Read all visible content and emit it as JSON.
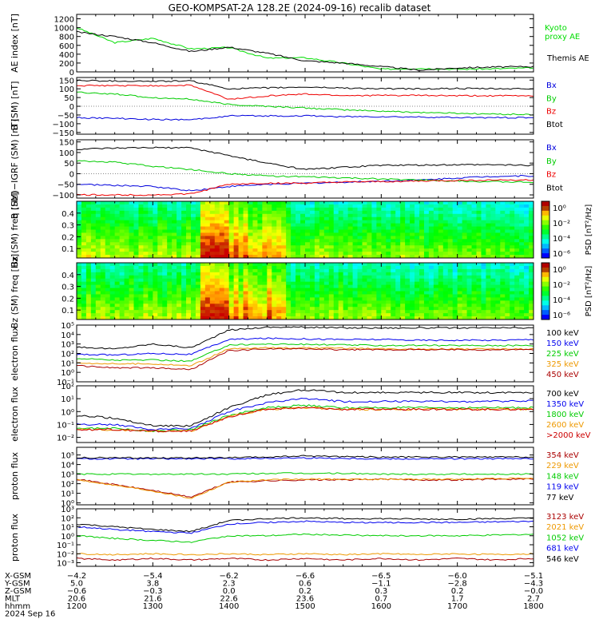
{
  "title": "GEO-KOMPSAT-2A 128.2E (2024-09-16) recalib dataset",
  "chart_data": [
    {
      "type": "line",
      "ylabel": "AE index [nT]",
      "yticks": [
        "0",
        "200",
        "400",
        "600",
        "800",
        "1000",
        "1200"
      ],
      "ylim": [
        0,
        1300
      ],
      "x": [
        "1200",
        "1230",
        "1300",
        "1330",
        "1400",
        "1430",
        "1500",
        "1530",
        "1600",
        "1630",
        "1700",
        "1730",
        "1800"
      ],
      "series": [
        {
          "name": "Kyoto proxy AE",
          "color": "#00dd00",
          "values": [
            1000,
            660,
            760,
            520,
            550,
            310,
            320,
            200,
            60,
            80,
            60,
            70,
            90
          ]
        },
        {
          "name": "Themis AE",
          "color": "#000000",
          "values": [
            900,
            800,
            660,
            460,
            560,
            420,
            250,
            200,
            120,
            40,
            90,
            110,
            120
          ]
        }
      ],
      "legend": [
        {
          "text": "Kyoto",
          "color": "#00dd00"
        },
        {
          "text": "proxy AE",
          "color": "#00dd00"
        },
        {
          "text": "Themis AE",
          "color": "#000000"
        }
      ]
    },
    {
      "type": "line",
      "ylabel": "B (SM) [nT]",
      "yticks": [
        "−150",
        "−100",
        "−50",
        "0",
        "50",
        "100",
        "150"
      ],
      "ylim": [
        -160,
        165
      ],
      "x": [
        "1200",
        "1230",
        "1300",
        "1330",
        "1400",
        "1430",
        "1500",
        "1530",
        "1600",
        "1630",
        "1700",
        "1730",
        "1800"
      ],
      "series": [
        {
          "name": "Bx",
          "color": "#0000dd",
          "values": [
            -65,
            -70,
            -75,
            -78,
            -55,
            -55,
            -55,
            -60,
            -60,
            -62,
            -65,
            -65,
            -65
          ]
        },
        {
          "name": "By",
          "color": "#00cc00",
          "values": [
            80,
            70,
            50,
            40,
            10,
            0,
            -10,
            -20,
            -28,
            -35,
            -40,
            -45,
            -48
          ]
        },
        {
          "name": "Bz",
          "color": "#ee0000",
          "values": [
            118,
            118,
            118,
            120,
            40,
            60,
            70,
            62,
            62,
            62,
            60,
            60,
            60
          ]
        },
        {
          "name": "Btot",
          "color": "#000000",
          "values": [
            148,
            145,
            143,
            145,
            100,
            105,
            110,
            105,
            100,
            100,
            102,
            100,
            100
          ]
        }
      ],
      "legend": [
        {
          "text": "Bx",
          "color": "#0000dd"
        },
        {
          "text": "By",
          "color": "#00cc00"
        },
        {
          "text": "Bz",
          "color": "#ee0000"
        },
        {
          "text": "Btot",
          "color": "#000000"
        }
      ]
    },
    {
      "type": "line",
      "ylabel": "B (SM)−IGRF (SM) [nT]",
      "yticks": [
        "−100",
        "−50",
        "0",
        "50",
        "100",
        "150"
      ],
      "ylim": [
        -115,
        160
      ],
      "x": [
        "1200",
        "1230",
        "1300",
        "1330",
        "1400",
        "1430",
        "1500",
        "1530",
        "1600",
        "1630",
        "1700",
        "1730",
        "1800"
      ],
      "series": [
        {
          "name": "Bx",
          "color": "#0000dd",
          "values": [
            -50,
            -55,
            -60,
            -80,
            -60,
            -50,
            -45,
            -40,
            -35,
            -30,
            -20,
            -12,
            -10
          ]
        },
        {
          "name": "By",
          "color": "#00cc00",
          "values": [
            60,
            55,
            35,
            20,
            0,
            -10,
            -15,
            -20,
            -25,
            -30,
            -35,
            -38,
            -40
          ]
        },
        {
          "name": "Bz",
          "color": "#ee0000",
          "values": [
            -100,
            -100,
            -100,
            -95,
            -50,
            -45,
            -45,
            -40,
            -38,
            -35,
            -32,
            -30,
            -30
          ]
        },
        {
          "name": "Btot",
          "color": "#000000",
          "values": [
            115,
            120,
            123,
            122,
            85,
            50,
            20,
            30,
            40,
            40,
            42,
            42,
            40
          ]
        }
      ],
      "legend": [
        {
          "text": "Bx",
          "color": "#0000dd"
        },
        {
          "text": "By",
          "color": "#00cc00"
        },
        {
          "text": "Bz",
          "color": "#ee0000"
        },
        {
          "text": "Btot",
          "color": "#000000"
        }
      ]
    },
    {
      "type": "heatmap",
      "ylabel": "Bx (SM) freq [Hz]",
      "yticks": [
        "0.1",
        "0.2",
        "0.3",
        "0.4"
      ],
      "ylim": [
        0.02,
        0.5
      ],
      "xlim": [
        "1200",
        "1800"
      ],
      "colorbar": {
        "label": "PSD [nT²/Hz]",
        "ticks": [
          "10⁰",
          "10⁻²",
          "10⁻⁴",
          "10⁻⁶"
        ]
      }
    },
    {
      "type": "heatmap",
      "ylabel": "Bz (SM) freq [Hz]",
      "yticks": [
        "0.1",
        "0.2",
        "0.3",
        "0.4"
      ],
      "ylim": [
        0.02,
        0.5
      ],
      "xlim": [
        "1200",
        "1800"
      ],
      "colorbar": {
        "label": "PSD [nT²/Hz]",
        "ticks": [
          "10⁰",
          "10⁻²",
          "10⁻⁴",
          "10⁻⁶"
        ]
      }
    },
    {
      "type": "line",
      "ylabel": "electron flux",
      "log_y": true,
      "yticks": [
        "10⁻¹",
        "10⁰",
        "10¹",
        "10²",
        "10³",
        "10⁴",
        "10⁵"
      ],
      "ylim_exp": [
        -1,
        5
      ],
      "x": [
        "1200",
        "1230",
        "1300",
        "1330",
        "1400",
        "1430",
        "1500",
        "1530",
        "1600",
        "1630",
        "1700",
        "1730",
        "1800"
      ],
      "series": [
        {
          "name": "100 keV",
          "color": "#000000",
          "values": [
            500,
            300,
            1000,
            400,
            30000,
            60000,
            60000,
            50000,
            50000,
            50000,
            50000,
            50000,
            50000
          ]
        },
        {
          "name": "150 keV",
          "color": "#0000ee",
          "values": [
            80,
            70,
            100,
            80,
            3000,
            4000,
            3500,
            3000,
            3000,
            2500,
            2500,
            2500,
            3000
          ]
        },
        {
          "name": "225 keV",
          "color": "#00cc00",
          "values": [
            30,
            20,
            20,
            15,
            800,
            1000,
            900,
            800,
            700,
            700,
            700,
            700,
            700
          ]
        },
        {
          "name": "325 keV",
          "color": "#ee9900",
          "values": [
            10,
            8,
            8,
            5,
            300,
            400,
            400,
            350,
            300,
            300,
            300,
            300,
            300
          ]
        },
        {
          "name": "450 keV",
          "color": "#aa0000",
          "values": [
            5,
            3,
            3,
            2,
            200,
            300,
            300,
            250,
            250,
            250,
            250,
            250,
            250
          ]
        }
      ]
    },
    {
      "type": "line",
      "ylabel": "electron flux",
      "log_y": true,
      "yticks": [
        "10⁻²",
        "10⁻¹",
        "10⁰",
        "10¹",
        "10²"
      ],
      "ylim_exp": [
        -2.4,
        2
      ],
      "x": [
        "1200",
        "1230",
        "1300",
        "1330",
        "1400",
        "1430",
        "1500",
        "1530",
        "1600",
        "1630",
        "1700",
        "1730",
        "1800"
      ],
      "series": [
        {
          "name": "700 keV",
          "color": "#000000",
          "values": [
            0.5,
            0.3,
            0.08,
            0.08,
            2,
            20,
            50,
            30,
            30,
            30,
            30,
            30,
            30
          ]
        },
        {
          "name": "1350 keV",
          "color": "#0000ee",
          "values": [
            0.1,
            0.1,
            0.04,
            0.05,
            1,
            5,
            10,
            6,
            6,
            6,
            6,
            6,
            7
          ]
        },
        {
          "name": "1800 keV",
          "color": "#00cc00",
          "values": [
            0.05,
            0.05,
            0.03,
            0.04,
            0.5,
            2,
            3,
            2,
            2,
            2,
            2,
            2,
            2
          ]
        },
        {
          "name": "2600 keV",
          "color": "#ee9900",
          "values": [
            0.04,
            0.04,
            0.03,
            0.03,
            0.4,
            1.5,
            2,
            1.5,
            1.5,
            1.5,
            1.5,
            1.5,
            1.5
          ]
        },
        {
          "name": ">2000 keV",
          "color": "#cc0000",
          "values": [
            0.04,
            0.04,
            0.03,
            0.03,
            0.4,
            1.5,
            2,
            1.5,
            1.5,
            1.5,
            1.5,
            1.5,
            1.5
          ]
        }
      ]
    },
    {
      "type": "line",
      "ylabel": "proton flux",
      "log_y": true,
      "yticks": [
        "10⁰",
        "10¹",
        "10²",
        "10³",
        "10⁴",
        "10⁵"
      ],
      "ylim_exp": [
        -0.2,
        5.8
      ],
      "x": [
        "1200",
        "1230",
        "1300",
        "1330",
        "1400",
        "1430",
        "1500",
        "1530",
        "1600",
        "1630",
        "1700",
        "1730",
        "1800"
      ],
      "series": [
        {
          "name": "354 keV",
          "color": "#aa0000",
          "values": [
            300,
            80,
            20,
            4,
            150,
            200,
            250,
            250,
            300,
            250,
            250,
            300,
            300
          ]
        },
        {
          "name": "229 keV",
          "color": "#ee9900",
          "values": [
            280,
            70,
            18,
            3,
            150,
            250,
            300,
            300,
            300,
            300,
            300,
            350,
            350
          ]
        },
        {
          "name": "148 keV",
          "color": "#00cc00",
          "values": [
            1000,
            1000,
            1000,
            1000,
            1000,
            1200,
            1200,
            1200,
            1000,
            1000,
            1000,
            1000,
            1000
          ]
        },
        {
          "name": "119 keV",
          "color": "#0000ee",
          "values": [
            40000,
            40000,
            40000,
            40000,
            40000,
            45000,
            50000,
            45000,
            40000,
            40000,
            40000,
            40000,
            40000
          ]
        },
        {
          "name": "77 keV",
          "color": "#000000",
          "values": [
            50000,
            50000,
            50000,
            50000,
            50000,
            60000,
            80000,
            70000,
            60000,
            60000,
            60000,
            60000,
            60000
          ]
        }
      ]
    },
    {
      "type": "line",
      "ylabel": "proton flux",
      "log_y": true,
      "yticks": [
        "10⁻³",
        "10⁻²",
        "10⁻¹",
        "10⁰",
        "10¹",
        "10²",
        "10³"
      ],
      "ylim_exp": [
        -3.4,
        3
      ],
      "x": [
        "1200",
        "1230",
        "1300",
        "1330",
        "1400",
        "1430",
        "1500",
        "1530",
        "1600",
        "1630",
        "1700",
        "1730",
        "1800"
      ],
      "series": [
        {
          "name": "3123 keV",
          "color": "#aa0000",
          "values": [
            0.003,
            0.002,
            0.003,
            0.002,
            0.003,
            0.002,
            0.003,
            0.002,
            0.003,
            0.002,
            0.003,
            0.002,
            0.003
          ]
        },
        {
          "name": "2021 keV",
          "color": "#ee9900",
          "values": [
            0.01,
            0.008,
            0.01,
            0.008,
            0.01,
            0.008,
            0.01,
            0.008,
            0.01,
            0.008,
            0.01,
            0.008,
            0.01
          ]
        },
        {
          "name": "1052 keV",
          "color": "#00cc00",
          "values": [
            1,
            0.5,
            0.3,
            0.2,
            1,
            1,
            1.5,
            1.2,
            1,
            1,
            1,
            1.2,
            1.5
          ]
        },
        {
          "name": "681 keV",
          "color": "#0000ee",
          "values": [
            10,
            5,
            3,
            2,
            20,
            30,
            40,
            30,
            30,
            30,
            30,
            35,
            40
          ]
        },
        {
          "name": "546 keV",
          "color": "#000000",
          "values": [
            20,
            10,
            5,
            3,
            50,
            80,
            100,
            80,
            80,
            70,
            70,
            80,
            90
          ]
        }
      ]
    }
  ],
  "footer": {
    "rows": [
      {
        "label": "X-GSM",
        "values": [
          "−4.2",
          "−5.4",
          "−6.2",
          "−6.6",
          "−6.5",
          "−6.0",
          "−5.1"
        ]
      },
      {
        "label": "Y-GSM",
        "values": [
          "5.0",
          "3.8",
          "2.3",
          "0.6",
          "−1.1",
          "−2.8",
          "−4.3"
        ]
      },
      {
        "label": "Z-GSM",
        "values": [
          "−0.6",
          "−0.3",
          "0.0",
          "0.2",
          "0.3",
          "0.2",
          "−0.0"
        ]
      },
      {
        "label": "MLT",
        "values": [
          "20.6",
          "21.6",
          "22.6",
          "23.6",
          "0.7",
          "1.7",
          "2.7"
        ]
      },
      {
        "label": "hhmm",
        "values": [
          "1200",
          "1300",
          "1400",
          "1500",
          "1600",
          "1700",
          "1800"
        ]
      }
    ],
    "date": "2024 Sep 16"
  }
}
